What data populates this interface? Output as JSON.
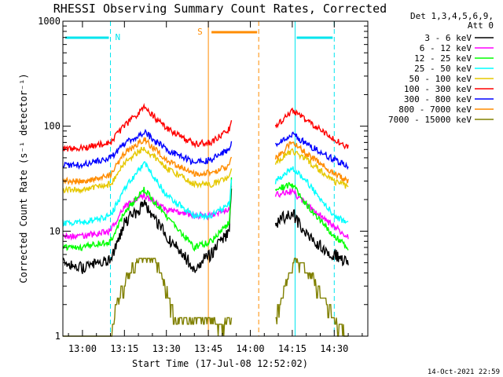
{
  "chart_data": {
    "type": "line",
    "title": "RHESSI Observing Summary Count Rates, Corrected",
    "xlabel": "Start Time (17-Jul-08 12:52:02)",
    "ylabel": "Corrected Count Rate (s⁻¹ detector⁻¹)",
    "y_scale": "log",
    "ylim": [
      1,
      1000
    ],
    "xlim_minutes": [
      -7,
      102
    ],
    "x_ticks": [
      {
        "label": "13:00",
        "min": 0
      },
      {
        "label": "13:15",
        "min": 15
      },
      {
        "label": "13:30",
        "min": 30
      },
      {
        "label": "13:45",
        "min": 45
      },
      {
        "label": "14:00",
        "min": 60
      },
      {
        "label": "14:15",
        "min": 75
      },
      {
        "label": "14:30",
        "min": 90
      }
    ],
    "y_ticks": [
      {
        "label": "1",
        "v": 1
      },
      {
        "label": "10",
        "v": 10
      },
      {
        "label": "100",
        "v": 100
      },
      {
        "label": "1000",
        "v": 1000
      }
    ],
    "legend_header": [
      "Det 1,3,4,5,6,9,",
      "Att 0"
    ],
    "timestamp": "14-Oct-2021 22:59",
    "annotations": {
      "night": {
        "label": "N",
        "start_min": -7,
        "end_min": 10,
        "color": "#00e5ee"
      },
      "night2": {
        "start_min": 76,
        "end_min": 90,
        "color": "#00e5ee"
      },
      "saa": {
        "label": "S",
        "start_min": 45,
        "end_min": 63,
        "color": "#ff8c00"
      }
    },
    "gap": {
      "start_min": 53.5,
      "end_min": 69
    },
    "series": [
      {
        "name": "3 - 6 keV",
        "color": "#000000",
        "t": [
          -7,
          0,
          10,
          15,
          22,
          30,
          40,
          46,
          52.5,
          53.3,
          69,
          75,
          80,
          90,
          95
        ],
        "y": [
          5,
          4.5,
          5.5,
          12,
          18,
          9,
          4.5,
          6,
          10,
          30,
          12,
          15,
          9,
          6,
          5
        ]
      },
      {
        "name": "6 - 12 keV",
        "color": "#ff00ff",
        "t": [
          -7,
          0,
          10,
          15,
          22,
          30,
          40,
          46,
          52.5,
          53.3,
          69,
          75,
          80,
          90,
          95
        ],
        "y": [
          9,
          9,
          10,
          17,
          22,
          16,
          14,
          14,
          16,
          30,
          22,
          24,
          18,
          11,
          9
        ]
      },
      {
        "name": "12 - 25 keV",
        "color": "#00ff00",
        "t": [
          -7,
          0,
          10,
          15,
          22,
          30,
          40,
          46,
          52.5,
          53.3,
          69,
          75,
          80,
          90,
          95
        ],
        "y": [
          7,
          7,
          8,
          15,
          25,
          14,
          7,
          8,
          12,
          35,
          25,
          28,
          18,
          9,
          7
        ]
      },
      {
        "name": "25 - 50 keV",
        "color": "#00ffff",
        "t": [
          -7,
          0,
          10,
          15,
          22,
          30,
          40,
          46,
          52.5,
          53.3,
          69,
          75,
          80,
          90,
          95
        ],
        "y": [
          12,
          12,
          14,
          25,
          45,
          22,
          14,
          14,
          18,
          30,
          30,
          40,
          30,
          14,
          12
        ]
      },
      {
        "name": "50 - 100 keV",
        "color": "#e6c800",
        "t": [
          -7,
          0,
          10,
          15,
          22,
          30,
          40,
          46,
          52.5,
          53.3,
          69,
          75,
          80,
          90,
          95
        ],
        "y": [
          25,
          25,
          28,
          45,
          62,
          40,
          28,
          28,
          32,
          40,
          45,
          58,
          48,
          30,
          26
        ]
      },
      {
        "name": "100 - 300 keV",
        "color": "#ff0000",
        "t": [
          -7,
          0,
          10,
          15,
          22,
          30,
          40,
          46,
          52.5,
          53.3,
          69,
          75,
          80,
          90,
          95
        ],
        "y": [
          60,
          62,
          70,
          100,
          150,
          95,
          68,
          70,
          95,
          115,
          100,
          140,
          115,
          75,
          62
        ]
      },
      {
        "name": "300 - 800 keV",
        "color": "#0000ff",
        "t": [
          -7,
          0,
          10,
          15,
          22,
          30,
          40,
          46,
          52.5,
          53.3,
          69,
          75,
          80,
          90,
          95
        ],
        "y": [
          42,
          43,
          50,
          68,
          88,
          60,
          45,
          48,
          60,
          75,
          65,
          85,
          68,
          48,
          42
        ]
      },
      {
        "name": "800 - 7000 keV",
        "color": "#ff8c00",
        "t": [
          -7,
          0,
          10,
          15,
          22,
          30,
          40,
          46,
          52.5,
          53.3,
          69,
          75,
          80,
          90,
          95
        ],
        "y": [
          30,
          30,
          34,
          55,
          75,
          48,
          35,
          36,
          42,
          52,
          50,
          70,
          55,
          35,
          30
        ]
      },
      {
        "name": "7000 - 15000 keV",
        "color": "#808000",
        "t": [
          -7,
          10,
          12,
          16,
          20,
          26,
          30,
          33,
          46,
          49,
          52.5,
          69,
          72,
          76,
          82,
          90,
          95
        ],
        "y": [
          1,
          1,
          2,
          4,
          5.5,
          5.5,
          3,
          1.5,
          1.5,
          1.3,
          1.5,
          1.5,
          3,
          5.5,
          4,
          1.5,
          1
        ]
      }
    ]
  }
}
